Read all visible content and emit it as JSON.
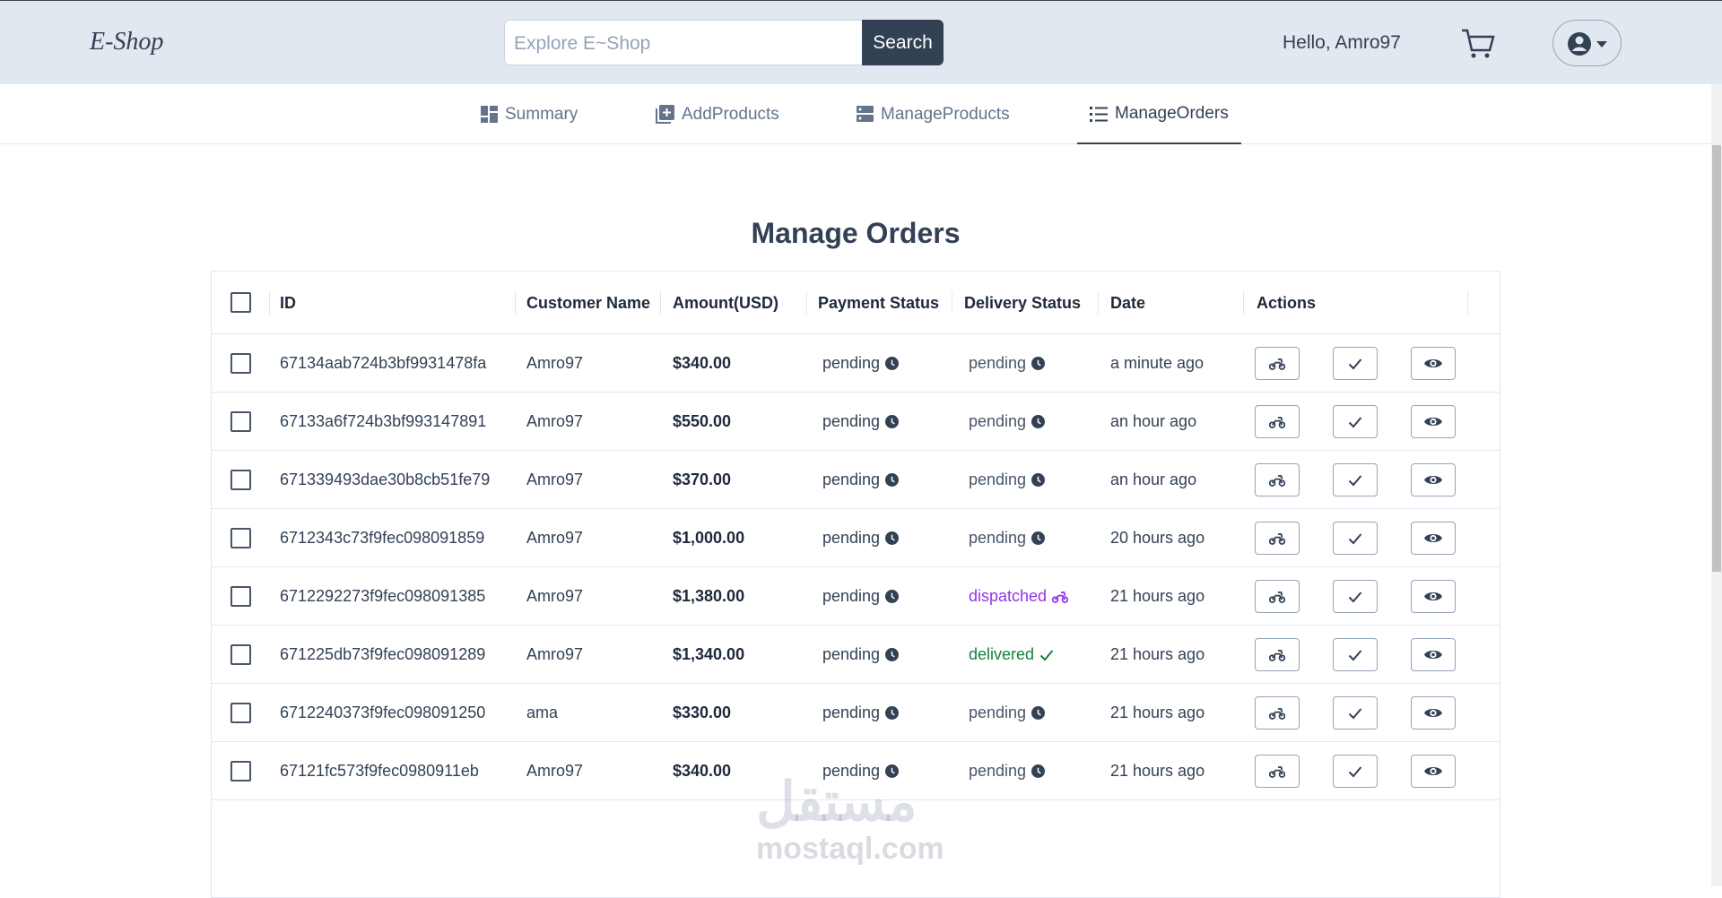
{
  "header": {
    "logo": "E-Shop",
    "search_placeholder": "Explore E~Shop",
    "search_button": "Search",
    "greeting": "Hello, Amro97"
  },
  "tabs": [
    "Summary",
    "AddProducts",
    "ManageProducts",
    "ManageOrders"
  ],
  "active_tab": 3,
  "title": "Manage Orders",
  "table": {
    "columns": [
      "ID",
      "Customer Name",
      "Amount(USD)",
      "Payment Status",
      "Delivery Status",
      "Date",
      "Actions"
    ],
    "rows": [
      {
        "id": "67134aab724b3bf9931478fa",
        "customer": "Amro97",
        "amount": "$340.00",
        "payment": "pending",
        "delivery": "pending",
        "date": "a minute ago"
      },
      {
        "id": "67133a6f724b3bf993147891",
        "customer": "Amro97",
        "amount": "$550.00",
        "payment": "pending",
        "delivery": "pending",
        "date": "an hour ago"
      },
      {
        "id": "671339493dae30b8cb51fe79",
        "customer": "Amro97",
        "amount": "$370.00",
        "payment": "pending",
        "delivery": "pending",
        "date": "an hour ago"
      },
      {
        "id": "6712343c73f9fec098091859",
        "customer": "Amro97",
        "amount": "$1,000.00",
        "payment": "pending",
        "delivery": "pending",
        "date": "20 hours ago"
      },
      {
        "id": "6712292273f9fec098091385",
        "customer": "Amro97",
        "amount": "$1,380.00",
        "payment": "pending",
        "delivery": "dispatched",
        "date": "21 hours ago"
      },
      {
        "id": "671225db73f9fec098091289",
        "customer": "Amro97",
        "amount": "$1,340.00",
        "payment": "pending",
        "delivery": "delivered",
        "date": "21 hours ago"
      },
      {
        "id": "6712240373f9fec098091250",
        "customer": "ama",
        "amount": "$330.00",
        "payment": "pending",
        "delivery": "pending",
        "date": "21 hours ago"
      },
      {
        "id": "67121fc573f9fec0980911eb",
        "customer": "Amro97",
        "amount": "$340.00",
        "payment": "pending",
        "delivery": "pending",
        "date": "21 hours ago"
      }
    ]
  },
  "watermark": {
    "arabic": "مستقل",
    "latin": "mostaql.com"
  }
}
